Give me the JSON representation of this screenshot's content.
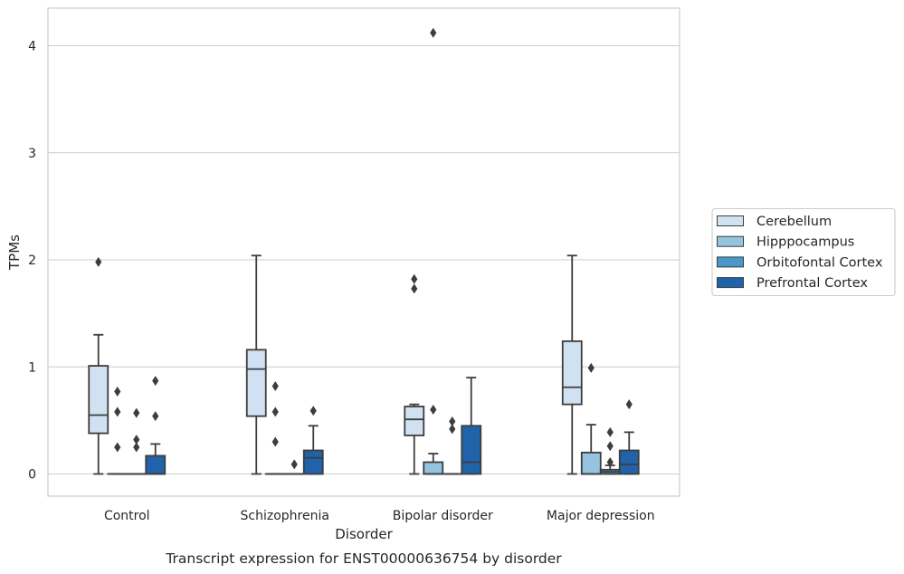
{
  "chart_data": {
    "type": "box",
    "caption": "Transcript expression for ENST00000636754 by disorder",
    "xlabel": "Disorder",
    "ylabel": "TPMs",
    "ylim": [
      -0.2,
      4.35
    ],
    "yticks": [
      0,
      1,
      2,
      3,
      4
    ],
    "grid": "horizontal",
    "legend_position": "right",
    "categories": [
      "Control",
      "Schizophrenia",
      "Bipolar disorder",
      "Major depression"
    ],
    "series": [
      {
        "name": "Cerebellum",
        "color": "#d0e1f2",
        "boxes": [
          {
            "min": 0,
            "q1": 0.38,
            "median": 0.55,
            "q3": 1.01,
            "max": 1.3,
            "outliers": [
              1.98
            ]
          },
          {
            "min": 0,
            "q1": 0.54,
            "median": 0.98,
            "q3": 1.16,
            "max": 2.04,
            "outliers": []
          },
          {
            "min": 0,
            "q1": 0.36,
            "median": 0.51,
            "q3": 0.63,
            "max": 0.65,
            "outliers": [
              1.73,
              1.82
            ]
          },
          {
            "min": 0,
            "q1": 0.65,
            "median": 0.81,
            "q3": 1.24,
            "max": 2.04,
            "outliers": []
          }
        ]
      },
      {
        "name": "Hipppocampus",
        "color": "#94c4df",
        "boxes": [
          {
            "min": 0,
            "q1": 0,
            "median": 0,
            "q3": 0,
            "max": 0,
            "outliers": [
              0.25,
              0.58,
              0.77
            ]
          },
          {
            "min": 0,
            "q1": 0,
            "median": 0,
            "q3": 0,
            "max": 0,
            "outliers": [
              0.3,
              0.58,
              0.82
            ]
          },
          {
            "min": 0,
            "q1": 0,
            "median": 0,
            "q3": 0.11,
            "max": 0.19,
            "outliers": [
              0.6,
              4.12
            ]
          },
          {
            "min": 0,
            "q1": 0,
            "median": 0,
            "q3": 0.2,
            "max": 0.46,
            "outliers": [
              0.99
            ]
          }
        ]
      },
      {
        "name": "Orbitofontal Cortex",
        "color": "#4a98c9",
        "boxes": [
          {
            "min": 0,
            "q1": 0,
            "median": 0,
            "q3": 0,
            "max": 0,
            "outliers": [
              0.25,
              0.32,
              0.57
            ]
          },
          {
            "min": 0,
            "q1": 0,
            "median": 0,
            "q3": 0,
            "max": 0,
            "outliers": [
              0.09
            ]
          },
          {
            "min": 0,
            "q1": 0,
            "median": 0,
            "q3": 0,
            "max": 0,
            "outliers": [
              0.42,
              0.49
            ]
          },
          {
            "min": 0,
            "q1": 0,
            "median": 0.02,
            "q3": 0.04,
            "max": 0.08,
            "outliers": [
              0.11,
              0.26,
              0.39
            ]
          }
        ]
      },
      {
        "name": "Prefrontal Cortex",
        "color": "#2163aa",
        "boxes": [
          {
            "min": 0,
            "q1": 0,
            "median": 0,
            "q3": 0.17,
            "max": 0.28,
            "outliers": [
              0.54,
              0.87
            ]
          },
          {
            "min": 0,
            "q1": 0,
            "median": 0.15,
            "q3": 0.22,
            "max": 0.45,
            "outliers": [
              0.59
            ]
          },
          {
            "min": 0,
            "q1": 0,
            "median": 0.11,
            "q3": 0.45,
            "max": 0.9,
            "outliers": []
          },
          {
            "min": 0,
            "q1": 0,
            "median": 0.09,
            "q3": 0.22,
            "max": 0.39,
            "outliers": [
              0.65
            ]
          }
        ]
      }
    ]
  }
}
